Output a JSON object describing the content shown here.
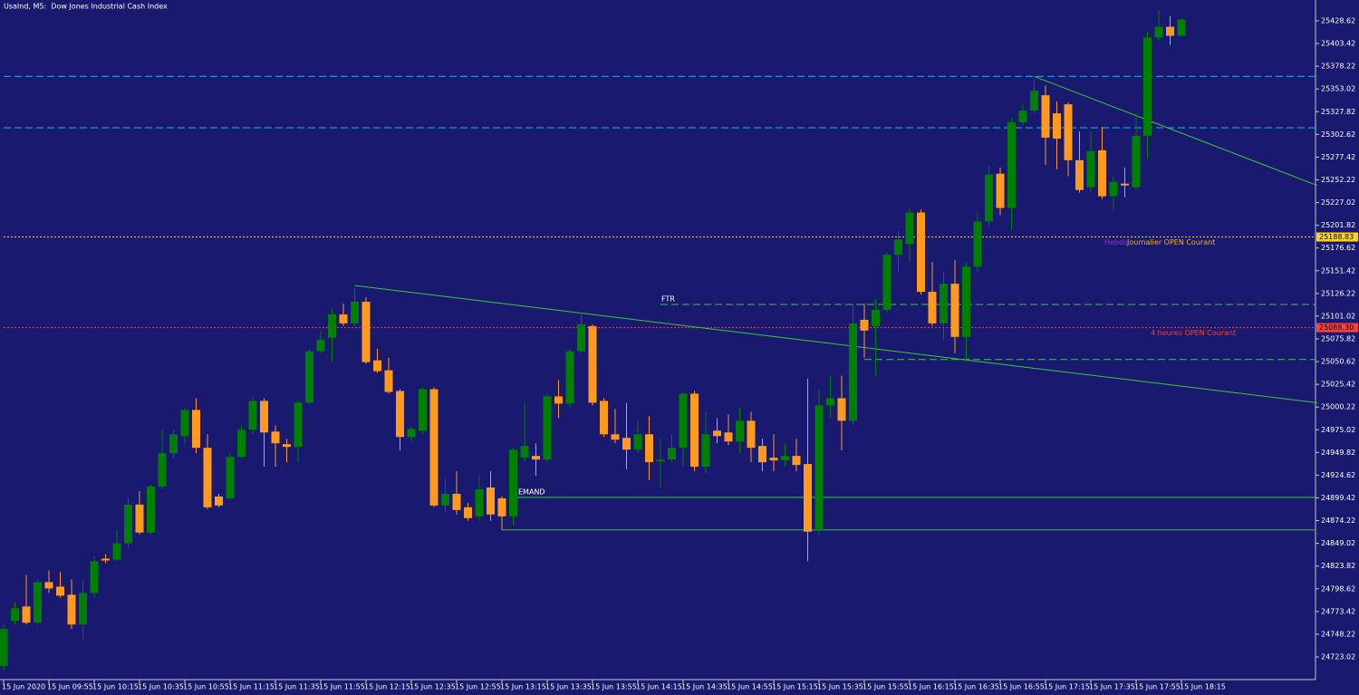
{
  "chart_data": {
    "type": "candlestick",
    "title": "UsaInd, M5:  Dow Jones Industrial Cash Index",
    "categories": [
      "15 Jun 2020",
      null,
      null,
      null,
      "15 Jun 09:55",
      null,
      null,
      null,
      "15 Jun 10:15",
      null,
      null,
      null,
      "15 Jun 10:35",
      null,
      null,
      null,
      "15 Jun 10:55",
      null,
      null,
      null,
      "15 Jun 11:15",
      null,
      null,
      null,
      "15 Jun 11:35",
      null,
      null,
      null,
      "15 Jun 11:55",
      null,
      null,
      null,
      "15 Jun 12:15",
      null,
      null,
      null,
      "15 Jun 12:35",
      null,
      null,
      null,
      "15 Jun 12:55",
      null,
      null,
      null,
      "15 Jun 13:15",
      null,
      null,
      null,
      "15 Jun 13:35",
      null,
      null,
      null,
      "15 Jun 13:55",
      null,
      null,
      null,
      "15 Jun 14:15",
      null,
      null,
      null,
      "15 Jun 14:35",
      null,
      null,
      null,
      "15 Jun 14:55",
      null,
      null,
      null,
      "15 Jun 15:15",
      null,
      null,
      null,
      "15 Jun 15:35",
      null,
      null,
      null,
      "15 Jun 15:55",
      null,
      null,
      null,
      "15 Jun 16:15",
      null,
      null,
      null,
      "15 Jun 16:35",
      null,
      null,
      null,
      "15 Jun 16:55",
      null,
      null,
      null,
      "15 Jun 17:15",
      null,
      null,
      null,
      "15 Jun 17:35",
      null,
      null,
      null,
      "15 Jun 17:55",
      null,
      null,
      null,
      "15 Jun 18:15"
    ],
    "open": [
      24713,
      24763,
      24779,
      24761,
      24806,
      24801,
      24792,
      24759,
      24794,
      24832,
      24831,
      24849,
      24892,
      24861,
      24912,
      24949,
      24968,
      24997,
      24955,
      24901,
      24899,
      24945,
      24975,
      25007,
      24973,
      24959,
      24956,
      25005,
      25062,
      25077,
      25103,
      25093,
      25117,
      25052,
      25041,
      25018,
      24967,
      24974,
      25020,
      24891,
      24904,
      24889,
      24879,
      24911,
      24899,
      24879,
      24944,
      24946,
      24942,
      25012,
      25004,
      25062,
      25090,
      25007,
      24970,
      24966,
      24953,
      24970,
      24940,
      24942,
      24955,
      25015,
      24934,
      24974,
      24972,
      24962,
      24985,
      24957,
      24944,
      24941,
      24946,
      24937,
      24864,
      25002,
      25010,
      24985,
      25097,
      25090,
      25108,
      25169,
      25181,
      25216,
      25128,
      25093,
      25137,
      25078,
      25156,
      25206,
      25259,
      25221,
      25316,
      25329,
      25346,
      25326,
      25336,
      25274,
      25244,
      25285,
      25234,
      25248,
      25244,
      25301,
      25410,
      25422,
      25412
    ],
    "high": [
      24759,
      24784,
      24814,
      24809,
      24819,
      24817,
      24809,
      24809,
      24834,
      24837,
      24864,
      24899,
      24907,
      24914,
      24975,
      24975,
      25000,
      25010,
      24970,
      24904,
      24949,
      24980,
      25012,
      25010,
      24980,
      24965,
      25007,
      25065,
      25085,
      25110,
      25115,
      25132,
      25122,
      25065,
      25055,
      25020,
      24978,
      25022,
      25022,
      24921,
      24929,
      24894,
      24924,
      24929,
      24901,
      24955,
      25005,
      24960,
      25015,
      25030,
      25065,
      25105,
      25092,
      25010,
      24998,
      25005,
      24985,
      24990,
      24965,
      24970,
      25017,
      25018,
      24995,
      24988,
      24992,
      25000,
      24995,
      24965,
      24970,
      24960,
      24965,
      25032,
      25020,
      25035,
      25035,
      25115,
      25115,
      25120,
      25171,
      25196,
      25221,
      25219,
      25161,
      25150,
      25163,
      25161,
      25216,
      25268,
      25266,
      25321,
      25336,
      25364,
      25357,
      25339,
      25338,
      25306,
      25306,
      25311,
      25256,
      25266,
      25326,
      25417,
      25440,
      25434,
      25432
    ],
    "low": [
      24708,
      24759,
      24759,
      24759,
      24794,
      24789,
      24754,
      24743,
      24789,
      24827,
      24829,
      24844,
      24859,
      24859,
      24909,
      24944,
      24960,
      24949,
      24887,
      24889,
      24897,
      24944,
      24970,
      24934,
      24934,
      24939,
      24939,
      25003,
      25060,
      25050,
      25090,
      25090,
      25048,
      25038,
      25015,
      24952,
      24962,
      24970,
      24889,
      24884,
      24881,
      24874,
      24874,
      24874,
      24864,
      24869,
      24939,
      24924,
      24939,
      24988,
      25000,
      25060,
      25002,
      24967,
      24960,
      24931,
      24949,
      24919,
      24911,
      24939,
      24934,
      24929,
      24927,
      24960,
      24958,
      24949,
      24939,
      24929,
      24929,
      24934,
      24929,
      24829,
      24859,
      24988,
      24952,
      24980,
      25055,
      25035,
      25105,
      25150,
      25161,
      25125,
      25090,
      25075,
      25060,
      25050,
      25150,
      25201,
      25213,
      25196,
      25313,
      25326,
      25269,
      25264,
      25256,
      25238,
      25239,
      25231,
      25218,
      25233,
      25241,
      25276,
      25407,
      25402,
      25412
    ],
    "close": [
      24754,
      24777,
      24761,
      24806,
      24799,
      24791,
      24759,
      24794,
      24829,
      24830,
      24849,
      24892,
      24861,
      24912,
      24949,
      24970,
      24997,
      24955,
      24889,
      24891,
      24945,
      24975,
      25007,
      24972,
      24960,
      24956,
      25005,
      25062,
      25075,
      25103,
      25093,
      25117,
      25050,
      25040,
      25017,
      24967,
      24976,
      25020,
      24891,
      24904,
      24886,
      24877,
      24909,
      24881,
      24879,
      24953,
      24957,
      24942,
      25012,
      25004,
      25062,
      25092,
      25005,
      24970,
      24964,
      24953,
      24970,
      24939,
      24942,
      24955,
      25015,
      24934,
      24970,
      24968,
      24962,
      24985,
      24955,
      24939,
      24941,
      24946,
      24936,
      24862,
      25002,
      25010,
      24985,
      25093,
      25085,
      25108,
      25169,
      25186,
      25216,
      25128,
      25093,
      25137,
      25078,
      25156,
      25206,
      25258,
      25221,
      25316,
      25329,
      25351,
      25299,
      25298,
      25274,
      25241,
      25284,
      25234,
      25250,
      25246,
      25301,
      25410,
      25422,
      25412,
      25430
    ],
    "up_color": "#008000",
    "down_color": "#ff9a1f",
    "ylim": [
      24697.9,
      25451.7
    ],
    "yticks": [
      25428.62,
      25403.42,
      25378.22,
      25353.02,
      25327.82,
      25302.62,
      25277.42,
      25252.22,
      25227.02,
      25201.82,
      25176.62,
      25151.42,
      25126.22,
      25101.02,
      25075.82,
      25050.62,
      25025.42,
      25000.22,
      24975.02,
      24949.82,
      24924.62,
      24899.42,
      24874.22,
      24849.02,
      24823.82,
      24798.62,
      24773.42,
      24748.22,
      24723.02
    ],
    "levels": [
      {
        "value": 25367,
        "color": "#00bfff",
        "style": "dash",
        "from": 0
      },
      {
        "value": 25310,
        "color": "#00bfff",
        "style": "dash",
        "from": 0
      },
      {
        "value": 25114,
        "color": "#32cd32",
        "style": "dash",
        "from": 58,
        "texts": [
          {
            "text": "FTR",
            "color": "#ffffff"
          }
        ]
      },
      {
        "value": 25053,
        "color": "#32cd32",
        "style": "dash",
        "from": 76
      },
      {
        "value": 25188.83,
        "color": "#ffd700",
        "style": "dot",
        "from": 0,
        "tag": 25188.83,
        "texts": [
          {
            "text": "Hebdo",
            "color": "#9932cc"
          },
          {
            "text": "Journalier OPEN Courant",
            "color": "#ffb000"
          }
        ]
      },
      {
        "value": 25088.3,
        "color": "#ff4040",
        "style": "dot",
        "from": 0,
        "tag": {
          "value": 25088.3,
          "label": "25088.30"
        },
        "texts": [
          {
            "text": "4 heures OPEN Courant",
            "color": "#ff4020"
          }
        ]
      },
      {
        "value": 24900,
        "color": "#32cd32",
        "style": "solid",
        "from": 45,
        "texts": [
          {
            "text": "EMAND",
            "color": "#ffffff"
          }
        ]
      },
      {
        "value": 24864,
        "color": "#32cd32",
        "style": "solid",
        "from": 44
      }
    ],
    "trendlines": [
      {
        "from": [
          31,
          25135
        ],
        "to": [
          116,
          25005
        ],
        "color": "#32cd32"
      },
      {
        "from": [
          91,
          25367
        ],
        "to": [
          116,
          25246
        ],
        "color": "#32cd32"
      }
    ]
  }
}
